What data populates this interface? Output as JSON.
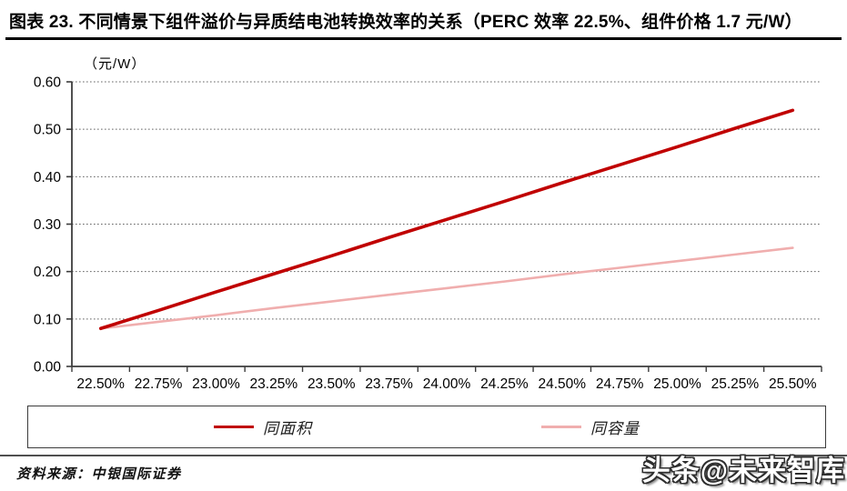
{
  "title": "图表 23. 不同情景下组件溢价与异质结电池转换效率的关系（PERC 效率 22.5%、组件价格 1.7 元/W）",
  "chart_data": {
    "type": "line",
    "title": "不同情景下组件溢价与异质结电池转换效率的关系（PERC 效率 22.5%、组件价格 1.7 元/W）",
    "unit_label": "（元/W）",
    "xlabel": "",
    "ylabel": "元/W",
    "ylim": [
      0.0,
      0.6
    ],
    "ytick_step": 0.1,
    "ytick_labels": [
      "0.00",
      "0.10",
      "0.20",
      "0.30",
      "0.40",
      "0.50",
      "0.60"
    ],
    "grid": "horizontal-dotted",
    "legend_position": "bottom-boxed",
    "categories": [
      "22.50%",
      "22.75%",
      "23.00%",
      "23.25%",
      "23.50%",
      "23.75%",
      "24.00%",
      "24.25%",
      "24.50%",
      "24.75%",
      "25.00%",
      "25.25%",
      "25.50%"
    ],
    "series": [
      {
        "name": "同面积",
        "color": "#c00000",
        "stroke_width": 3.6,
        "values": [
          0.08,
          0.118,
          0.157,
          0.195,
          0.233,
          0.272,
          0.31,
          0.348,
          0.387,
          0.425,
          0.463,
          0.502,
          0.54
        ]
      },
      {
        "name": "同容量",
        "color": "#f0aeae",
        "stroke_width": 2.6,
        "values": [
          0.08,
          0.094,
          0.108,
          0.123,
          0.137,
          0.151,
          0.165,
          0.179,
          0.194,
          0.208,
          0.222,
          0.236,
          0.25
        ]
      }
    ]
  },
  "colors": {
    "series_1": "#c00000",
    "series_2": "#f0aeae",
    "axis": "#3c3c3c",
    "grid": "#666666",
    "title_rule": "#000000"
  },
  "footer": {
    "source_label": "资料来源：中银国际证券"
  },
  "watermark": {
    "text": "头条@未来智库"
  }
}
